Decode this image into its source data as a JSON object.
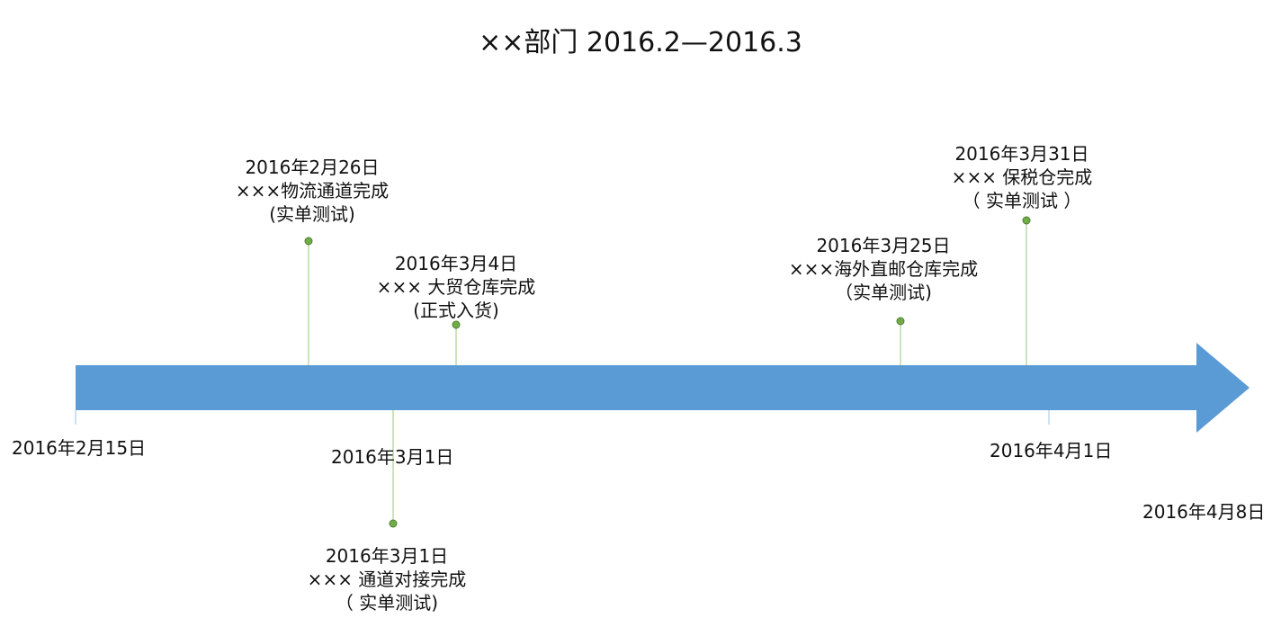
{
  "title": "××部门 2016.2—2016.3",
  "colors": {
    "arrow": "#5b9bd5",
    "marker": "#70ad47",
    "connector": "#a9d18e",
    "tick": "#9dc3e6"
  },
  "axis_labels": [
    {
      "text": "2016年2月15日"
    },
    {
      "text": "2016年3月1日"
    },
    {
      "text": "2016年4月1日"
    },
    {
      "text": "2016年4月8日"
    }
  ],
  "events": [
    {
      "date": "2016年2月26日",
      "title": "×××物流通道完成",
      "note": "(实单测试)"
    },
    {
      "date": "2016年3月4日",
      "title": "××× 大贸仓库完成",
      "note": "(正式入货)"
    },
    {
      "date": "2016年3月1日",
      "title": "××× 通道对接完成",
      "note": "（  实单测试)"
    },
    {
      "date": "2016年3月25日",
      "title": "×××海外直邮仓库完成",
      "note": "（实单测试)"
    },
    {
      "date": "2016年3月31日",
      "title": "××× 保税仓完成",
      "note": "（ 实单测试 ）"
    }
  ]
}
